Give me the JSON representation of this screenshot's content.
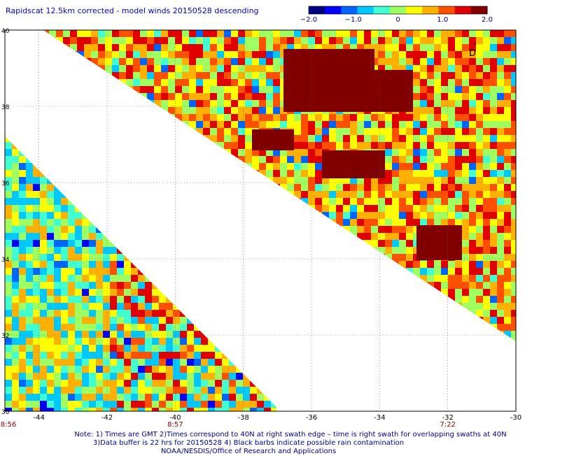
{
  "title": "Rapidscat 12.5km corrected - model winds 20150528 descending",
  "colorbar": {
    "ticks": [
      {
        "label": "−2.0",
        "value": -2.0
      },
      {
        "label": "−1.0",
        "value": -1.0
      },
      {
        "label": "0",
        "value": 0
      },
      {
        "label": "1.0",
        "value": 1.0
      },
      {
        "label": "2.0",
        "value": 2.0
      }
    ],
    "colors": [
      "#000080",
      "#0000ff",
      "#0064ff",
      "#00c8ff",
      "#40ffd0",
      "#a0ff60",
      "#ffff00",
      "#ffb000",
      "#ff5000",
      "#e00000",
      "#800000"
    ]
  },
  "map": {
    "lon_range": [
      -45,
      -30
    ],
    "lat_range": [
      30,
      40
    ],
    "lon_labels": [
      "-44",
      "-42",
      "-40",
      "-38",
      "-36",
      "-34",
      "-32",
      "-30"
    ],
    "lat_labels": [
      "30",
      "32",
      "34",
      "36",
      "38",
      "40"
    ],
    "swath_times": [
      {
        "label": "8:56",
        "lon": -45
      },
      {
        "label": "8:57",
        "lon": -40
      },
      {
        "label": "7:22",
        "lon": -32
      }
    ]
  },
  "notes": {
    "line1": "Note: 1) Times are GMT 2)Times correspond to 40N at right swath edge – time is right swath for overlapping swaths at 40N",
    "line2": "3)Data buffer is 22 hrs for 20150528 4) Black barbs indicate possible rain contamination",
    "line3": "NOAA/NESDIS/Office of Research and Applications"
  },
  "chart_data": {
    "type": "heatmap",
    "title": "Rapidscat 12.5km corrected - model winds 20150528 descending",
    "x_axis": "longitude",
    "y_axis": "latitude",
    "xlim": [
      -45,
      -30
    ],
    "ylim": [
      30,
      40
    ],
    "color_range": [
      -2.0,
      2.0
    ],
    "grid": true
  }
}
